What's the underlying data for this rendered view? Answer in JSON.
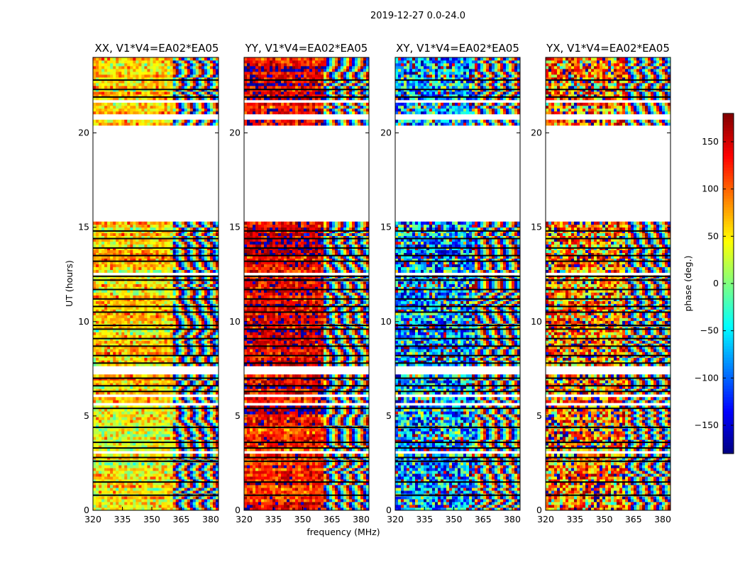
{
  "chart_data": {
    "type": "heatmap",
    "suptitle": "2019-12-27 0.0-24.0",
    "xlabel": "frequency (MHz)",
    "ylabel": "UT (hours)",
    "xlim": [
      320,
      384
    ],
    "ylim": [
      0,
      24
    ],
    "xticks": [
      "320",
      "335",
      "350",
      "365",
      "380"
    ],
    "yticks": [
      "0",
      "5",
      "10",
      "15",
      "20"
    ],
    "xtick_values": [
      320,
      335,
      350,
      365,
      380
    ],
    "ytick_values": [
      0,
      5,
      10,
      15,
      20
    ],
    "colorbar": {
      "label": "phase (deg.)",
      "range": [
        -180,
        180
      ],
      "ticks": [
        "−150",
        "−100",
        "−50",
        "0",
        "50",
        "100",
        "150"
      ],
      "tick_values": [
        -150,
        -100,
        -50,
        0,
        50,
        100,
        150
      ]
    },
    "panels": [
      {
        "title": "XX, V1*V4=EA02*EA05",
        "phase_bias": 60,
        "phase_bias_early": 45,
        "noise_deg": 40
      },
      {
        "title": "YY, V1*V4=EA02*EA05",
        "phase_bias": 150,
        "phase_bias_early": 125,
        "noise_deg": 40
      },
      {
        "title": "XY, V1*V4=EA02*EA05",
        "phase_bias": -80,
        "phase_bias_early": -80,
        "noise_deg": 95
      },
      {
        "title": "YX, V1*V4=EA02*EA05",
        "phase_bias": 100,
        "phase_bias_early": 100,
        "noise_deg": 95
      }
    ],
    "fringe_start_mhz": 361,
    "data_gaps_ut": [
      [
        15.3,
        20.4
      ],
      [
        20.65,
        21.05
      ],
      [
        7.2,
        7.65
      ],
      [
        21.55,
        21.7
      ],
      [
        6.0,
        6.1
      ],
      [
        5.6,
        5.7
      ],
      [
        3.0,
        3.1
      ],
      [
        1.0,
        1.1
      ],
      [
        12.5,
        12.6
      ]
    ],
    "flag_lines_ut": [
      0.8,
      1.5,
      2.6,
      2.8,
      3.3,
      3.6,
      4.4,
      5.4,
      6.3,
      6.6,
      7.0,
      7.8,
      8.2,
      8.7,
      9.1,
      9.6,
      9.8,
      10.5,
      10.8,
      11.2,
      11.7,
      12.2,
      12.4,
      13.2,
      13.5,
      13.9,
      14.4,
      14.8,
      21.9,
      22.3,
      22.8
    ]
  }
}
